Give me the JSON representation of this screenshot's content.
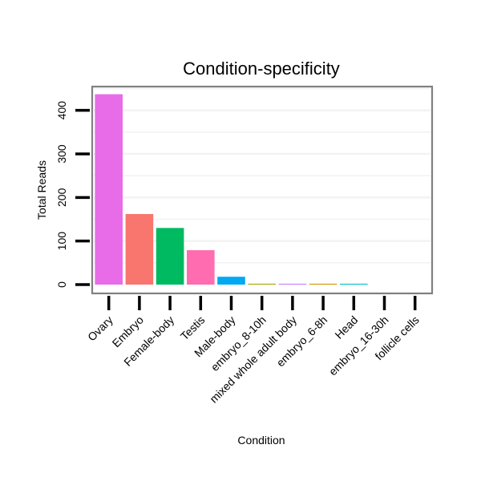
{
  "chart_data": {
    "type": "bar",
    "title": "Condition-specificity",
    "xlabel": "Condition",
    "ylabel": "Total Reads",
    "ylim": [
      0,
      450
    ],
    "yticks": [
      0,
      100,
      200,
      300,
      400
    ],
    "grid": true,
    "categories": [
      "Ovary",
      "Embryo",
      "Female-body",
      "Testis",
      "Male-body",
      "embryo_8-10h",
      "mixed whole adult body",
      "embryo_6-8h",
      "Head",
      "embryo_16-30h",
      "follicle cells"
    ],
    "values": [
      437,
      162,
      130,
      79,
      18,
      2,
      2,
      2,
      2,
      0,
      0
    ],
    "colors": [
      "#E86CE8",
      "#F8766D",
      "#00BA61",
      "#FF6CB0",
      "#00A9F1",
      "#A3A500",
      "#C77CFF",
      "#D29200",
      "#00BDC9",
      "#7CAE00",
      "#619CFF"
    ]
  }
}
